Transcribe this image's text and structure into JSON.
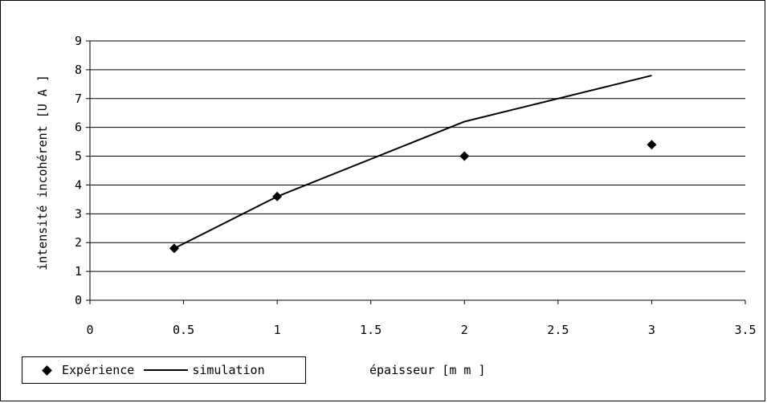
{
  "chart_data": {
    "type": "line",
    "xlabel": "épaisseur [m m ]",
    "ylabel": "intensité incohérent [U A ]",
    "xlim": [
      0,
      3.5
    ],
    "ylim": [
      0,
      9
    ],
    "x_ticks": [
      "0",
      "0.5",
      "1",
      "1.5",
      "2",
      "2.5",
      "3",
      "3.5"
    ],
    "y_ticks": [
      "0",
      "1",
      "2",
      "3",
      "4",
      "5",
      "6",
      "7",
      "8",
      "9"
    ],
    "grid": "horizontal",
    "legend_position": "bottom-left",
    "series": [
      {
        "name": "Expérience",
        "style": "markers",
        "marker": "diamond",
        "x": [
          0.45,
          1,
          2,
          3
        ],
        "y": [
          1.8,
          3.6,
          5.0,
          5.4
        ]
      },
      {
        "name": "simulation",
        "style": "line",
        "x": [
          0.45,
          1,
          2,
          3
        ],
        "y": [
          1.8,
          3.6,
          6.2,
          7.8
        ]
      }
    ]
  },
  "legend": {
    "experience_label": "Expérience",
    "simulation_label": "simulation"
  }
}
